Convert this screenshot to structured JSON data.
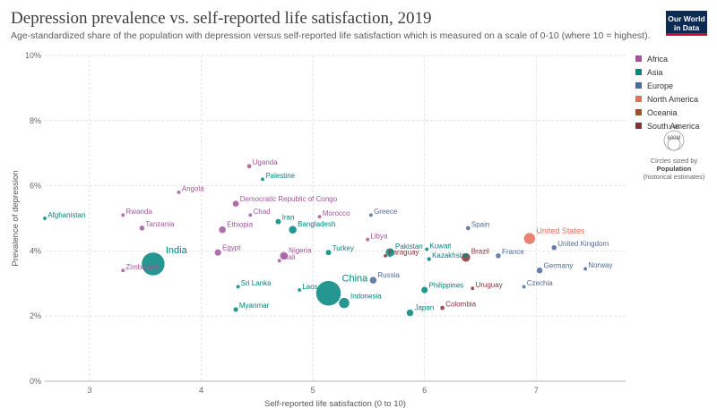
{
  "header": {
    "title": "Depression prevalence vs. self-reported life satisfaction, 2019",
    "subtitle": "Age-standardized share of the population with depression versus self-reported life satisfaction which is measured on a scale of 0-10 (where 10 = highest).",
    "logo_line1": "Our World",
    "logo_line2": "in Data"
  },
  "legend": {
    "items": [
      {
        "label": "Africa",
        "color": "#a2559c"
      },
      {
        "label": "Asia",
        "color": "#00847e"
      },
      {
        "label": "Europe",
        "color": "#4c6a9c"
      },
      {
        "label": "North America",
        "color": "#e56e5a"
      },
      {
        "label": "Oceania",
        "color": "#9a5129"
      },
      {
        "label": "South America",
        "color": "#883039"
      }
    ],
    "size_ticks": [
      "1.4B",
      "600M"
    ],
    "size_caption_1": "Circles sized by",
    "size_caption_2": "Population",
    "size_caption_3": "(historical estimates)"
  },
  "chart_data": {
    "type": "scatter",
    "title": "Depression prevalence vs. self-reported life satisfaction, 2019",
    "xlabel": "Self-reported life satisfaction (0 to 10)",
    "ylabel": "Prevalence of depression",
    "xlim": [
      2.6,
      7.8
    ],
    "ylim": [
      0,
      10
    ],
    "x_ticks": [
      "3",
      "4",
      "5",
      "6",
      "7"
    ],
    "y_ticks": [
      "0%",
      "2%",
      "4%",
      "6%",
      "8%",
      "10%"
    ],
    "grid": true,
    "legend_position": "right",
    "size_encoding": "population",
    "labeled_points": [
      {
        "name": "Afghanistan",
        "region": "Asia",
        "x": 2.6,
        "y": 5.0
      },
      {
        "name": "Uganda",
        "region": "Africa",
        "x": 4.43,
        "y": 6.6
      },
      {
        "name": "Palestine",
        "region": "Asia",
        "x": 4.55,
        "y": 6.2
      },
      {
        "name": "Angola",
        "region": "Africa",
        "x": 3.8,
        "y": 5.8
      },
      {
        "name": "Rwanda",
        "region": "Africa",
        "x": 3.3,
        "y": 5.1
      },
      {
        "name": "Tanzania",
        "region": "Africa",
        "x": 3.47,
        "y": 4.7
      },
      {
        "name": "Democratic Republic of Congo",
        "region": "Africa",
        "x": 4.31,
        "y": 5.45
      },
      {
        "name": "Chad",
        "region": "Africa",
        "x": 4.44,
        "y": 5.1
      },
      {
        "name": "Iran",
        "region": "Asia",
        "x": 4.69,
        "y": 4.9
      },
      {
        "name": "Ethiopia",
        "region": "Africa",
        "x": 4.19,
        "y": 4.65
      },
      {
        "name": "Bangladesh",
        "region": "Asia",
        "x": 4.82,
        "y": 4.65
      },
      {
        "name": "Morocco",
        "region": "Africa",
        "x": 5.06,
        "y": 5.05
      },
      {
        "name": "Greece",
        "region": "Europe",
        "x": 5.52,
        "y": 5.1
      },
      {
        "name": "Libya",
        "region": "Africa",
        "x": 5.49,
        "y": 4.35
      },
      {
        "name": "Spain",
        "region": "Europe",
        "x": 6.39,
        "y": 4.7
      },
      {
        "name": "United States",
        "region": "North America",
        "x": 6.94,
        "y": 4.38
      },
      {
        "name": "India",
        "region": "Asia",
        "x": 3.57,
        "y": 3.6
      },
      {
        "name": "Egypt",
        "region": "Africa",
        "x": 4.15,
        "y": 3.95
      },
      {
        "name": "Zimbabwe",
        "region": "Africa",
        "x": 3.3,
        "y": 3.4
      },
      {
        "name": "Nigeria",
        "region": "Africa",
        "x": 4.74,
        "y": 3.85
      },
      {
        "name": "Mali",
        "region": "Africa",
        "x": 4.7,
        "y": 3.7
      },
      {
        "name": "Turkey",
        "region": "Asia",
        "x": 5.14,
        "y": 3.95
      },
      {
        "name": "Pakistan",
        "region": "Asia",
        "x": 5.69,
        "y": 3.95
      },
      {
        "name": "Kuwait",
        "region": "Asia",
        "x": 6.02,
        "y": 4.05
      },
      {
        "name": "Brazil",
        "region": "South America",
        "x": 6.37,
        "y": 3.8
      },
      {
        "name": "France",
        "region": "Europe",
        "x": 6.66,
        "y": 3.85
      },
      {
        "name": "United Kingdom",
        "region": "Europe",
        "x": 7.16,
        "y": 4.1
      },
      {
        "name": "Norway",
        "region": "Europe",
        "x": 7.44,
        "y": 3.45
      },
      {
        "name": "Germany",
        "region": "Europe",
        "x": 7.03,
        "y": 3.4
      },
      {
        "name": "Paraguay",
        "region": "South America",
        "x": 5.65,
        "y": 3.85
      },
      {
        "name": "Kazakhstan",
        "region": "Asia",
        "x": 6.04,
        "y": 3.75
      },
      {
        "name": "Russia",
        "region": "Europe",
        "x": 5.54,
        "y": 3.1
      },
      {
        "name": "China",
        "region": "Asia",
        "x": 5.14,
        "y": 2.7
      },
      {
        "name": "Sri Lanka",
        "region": "Asia",
        "x": 4.33,
        "y": 2.9
      },
      {
        "name": "Laos",
        "region": "Asia",
        "x": 4.88,
        "y": 2.8
      },
      {
        "name": "Indonesia",
        "region": "Asia",
        "x": 5.28,
        "y": 2.4
      },
      {
        "name": "Philippines",
        "region": "Asia",
        "x": 6.0,
        "y": 2.8
      },
      {
        "name": "Uruguay",
        "region": "South America",
        "x": 6.43,
        "y": 2.85
      },
      {
        "name": "Czechia",
        "region": "Europe",
        "x": 6.89,
        "y": 2.9
      },
      {
        "name": "Myanmar",
        "region": "Asia",
        "x": 4.31,
        "y": 2.2
      },
      {
        "name": "Japan",
        "region": "Asia",
        "x": 5.87,
        "y": 2.1
      },
      {
        "name": "Colombia",
        "region": "South America",
        "x": 6.16,
        "y": 2.25
      }
    ]
  }
}
